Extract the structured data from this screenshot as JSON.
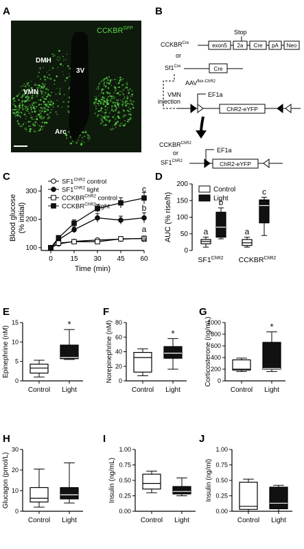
{
  "colors": {
    "micrograph_bg": "#0e1a0b",
    "gfp_green": "#5ad84a",
    "ink": "#000000",
    "fill_dark": "#111111",
    "fill_light": "#ffffff"
  },
  "panelA": {
    "letter": "A",
    "image_label": "CCKBR",
    "image_label_sup": "GFP",
    "regions": [
      "DMH",
      "3V",
      "VMN",
      "Arc"
    ]
  },
  "panelB": {
    "letter": "B",
    "stop_label": "Stop",
    "construct1": {
      "name": "CCKBR",
      "sup": "Cre",
      "boxes": [
        "exon5",
        "2a",
        "Cre",
        "pA",
        "Neo"
      ]
    },
    "or_label": "or",
    "construct2": {
      "name": "Sf1",
      "sup": "Cre",
      "boxes": [
        "Cre"
      ]
    },
    "aav_label": "AAV",
    "aav_sup": "flex-ChR2",
    "vmn_label": "VMN",
    "injection_label": "injection",
    "promoter": "EF1a",
    "gene": "ChR2-eYFP",
    "result_name1": "CCKBR",
    "result_sup1": "ChR2",
    "result_or": "or",
    "result_name2": "SF1",
    "result_sup2": "ChR2"
  },
  "chart_data": [
    {
      "panel": "C",
      "type": "line",
      "x": [
        0,
        5,
        15,
        30,
        45,
        60
      ],
      "xlabel": "Time (min)",
      "ylabel": [
        "Blood glucose",
        "(% initial)"
      ],
      "ylim": [
        90,
        320
      ],
      "yticks": [
        100,
        200,
        300
      ],
      "series": [
        {
          "name": "SF1",
          "name_sup": "ChR2",
          "condition": "control",
          "marker": "open-circle",
          "values": [
            100,
            113,
            122,
            127,
            130,
            133
          ],
          "err": [
            3,
            4,
            5,
            5,
            6,
            7
          ]
        },
        {
          "name": "SF1",
          "name_sup": "ChR2",
          "condition": "light",
          "marker": "filled-circle",
          "values": [
            100,
            128,
            163,
            205,
            197,
            205
          ],
          "err": [
            4,
            7,
            10,
            15,
            14,
            18
          ]
        },
        {
          "name": "CCKBR",
          "name_sup": "ChR2",
          "condition": "control",
          "marker": "open-square",
          "values": [
            100,
            116,
            121,
            121,
            131,
            132
          ],
          "err": [
            4,
            6,
            5,
            7,
            8,
            9
          ]
        },
        {
          "name": "CCKBR",
          "name_sup": "ChR2",
          "condition": "light",
          "marker": "filled-square",
          "values": [
            100,
            135,
            186,
            238,
            258,
            275
          ],
          "err": [
            4,
            6,
            12,
            14,
            18,
            20
          ]
        }
      ],
      "annotations": [
        {
          "text": "c",
          "y": 297
        },
        {
          "text": "b",
          "y": 230
        },
        {
          "text": "a",
          "y": 155
        },
        {
          "text": "a",
          "y": 120
        }
      ]
    },
    {
      "panel": "D",
      "type": "box",
      "ylabel": "AUC (% rise/h)",
      "ylim": [
        0,
        200
      ],
      "yticks": [
        0,
        50,
        100,
        150,
        200
      ],
      "groups": [
        {
          "name": "SF1",
          "name_sup": "ChR2",
          "boxes": [
            {
              "condition": "Control",
              "min": 10,
              "q1": 20,
              "median": 27,
              "q3": 33,
              "max": 40,
              "letter": "a"
            },
            {
              "condition": "Light",
              "min": 35,
              "q1": 40,
              "median": 70,
              "q3": 115,
              "max": 128,
              "letter": "b"
            }
          ]
        },
        {
          "name": "CCKBR",
          "name_sup": "ChR2",
          "boxes": [
            {
              "condition": "Control",
              "min": 10,
              "q1": 15,
              "median": 23,
              "q3": 33,
              "max": 40,
              "letter": "a"
            },
            {
              "condition": "Light",
              "min": 45,
              "q1": 83,
              "median": 135,
              "q3": 152,
              "max": 160,
              "letter": "c"
            }
          ]
        }
      ],
      "legend": [
        "Control",
        "Light"
      ]
    },
    {
      "panel": "E",
      "type": "box",
      "ylabel": "Epinephrine (nM)",
      "ylim": [
        0,
        15
      ],
      "yticks": [
        0,
        5,
        10,
        15
      ],
      "categories": [
        "Control",
        "Light"
      ],
      "boxes": [
        {
          "min": 1.0,
          "q1": 2.0,
          "median": 3.3,
          "q3": 4.3,
          "max": 5.3
        },
        {
          "min": 5.5,
          "q1": 5.7,
          "median": 6.0,
          "q3": 9.2,
          "max": 13.2
        }
      ],
      "significance": "*"
    },
    {
      "panel": "F",
      "type": "box",
      "ylabel": "Norepinephrine (nM)",
      "ylim": [
        0,
        80
      ],
      "yticks": [
        0,
        20,
        40,
        60,
        80
      ],
      "categories": [
        "Control",
        "Light"
      ],
      "boxes": [
        {
          "min": 7,
          "q1": 12,
          "median": 32,
          "q3": 39,
          "max": 44
        },
        {
          "min": 16,
          "q1": 31,
          "median": 38,
          "q3": 47,
          "max": 58
        }
      ],
      "significance": "*"
    },
    {
      "panel": "G",
      "type": "box",
      "ylabel": "Corticosterone (ng/mL)",
      "ylim": [
        0,
        1000
      ],
      "yticks": [
        0,
        200,
        400,
        600,
        800,
        1000
      ],
      "categories": [
        "Control",
        "Light"
      ],
      "boxes": [
        {
          "min": 160,
          "q1": 185,
          "median": 200,
          "q3": 360,
          "max": 390
        },
        {
          "min": 160,
          "q1": 200,
          "median": 210,
          "q3": 660,
          "max": 840
        }
      ],
      "significance": "*"
    },
    {
      "panel": "H",
      "type": "box",
      "ylabel": "Glucagon (pmol/L)",
      "ylim": [
        0,
        30
      ],
      "yticks": [
        0,
        10,
        20,
        30
      ],
      "categories": [
        "Control",
        "Light"
      ],
      "boxes": [
        {
          "min": 2.0,
          "q1": 4.5,
          "median": 6.3,
          "q3": 11.5,
          "max": 20.5
        },
        {
          "min": 4.0,
          "q1": 6.0,
          "median": 8.0,
          "q3": 11.5,
          "max": 23.5
        }
      ]
    },
    {
      "panel": "I",
      "type": "box",
      "ylabel": "Insulin (ng/mL)",
      "ylim": [
        0,
        1.0
      ],
      "yticks": [
        0.0,
        0.25,
        0.5,
        0.75,
        1.0
      ],
      "categories": [
        "Control",
        "Light"
      ],
      "boxes": [
        {
          "min": 0.3,
          "q1": 0.36,
          "median": 0.45,
          "q3": 0.6,
          "max": 0.65
        },
        {
          "min": 0.25,
          "q1": 0.28,
          "median": 0.32,
          "q3": 0.4,
          "max": 0.54
        }
      ]
    },
    {
      "panel": "J",
      "type": "box",
      "ylabel": "Insulin (ng/ml)",
      "ylim": [
        0,
        1.0
      ],
      "yticks": [
        0.0,
        0.25,
        0.5,
        0.75,
        1.0
      ],
      "categories": [
        "Control",
        "Light"
      ],
      "boxes": [
        {
          "min": 0.0,
          "q1": 0.03,
          "median": 0.08,
          "q3": 0.47,
          "max": 0.52
        },
        {
          "min": 0.0,
          "q1": 0.04,
          "median": 0.13,
          "q3": 0.39,
          "max": 0.42
        }
      ]
    }
  ]
}
